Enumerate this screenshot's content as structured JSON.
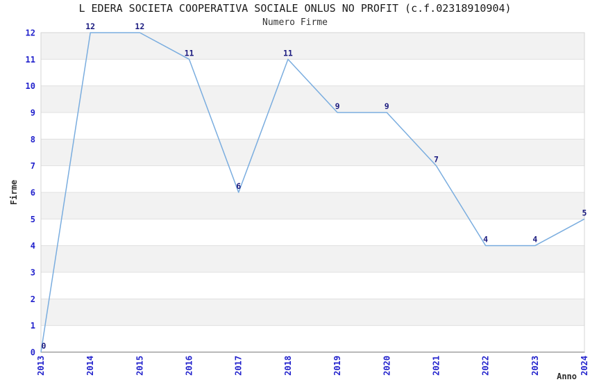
{
  "header": {
    "title": "L EDERA SOCIETA COOPERATIVA SOCIALE ONLUS NO PROFIT (c.f.02318910904)",
    "subtitle": "Numero Firme"
  },
  "chart_data": {
    "type": "line",
    "title": "Numero Firme",
    "x": [
      2013,
      2014,
      2015,
      2016,
      2017,
      2018,
      2019,
      2020,
      2021,
      2022,
      2023,
      2024
    ],
    "series": [
      {
        "name": "Numero Firme",
        "values": [
          0,
          12,
          12,
          11,
          6,
          11,
          9,
          9,
          7,
          4,
          4,
          5
        ]
      }
    ],
    "xlabel": "Anno",
    "ylabel": "Firme",
    "ylim": [
      0,
      12
    ],
    "yticks": [
      0,
      1,
      2,
      3,
      4,
      5,
      6,
      7,
      8,
      9,
      10,
      11,
      12
    ],
    "grid": true,
    "legend": "none",
    "data_labels_visible": true,
    "banding": "gray horizontal bands on ranges 1-2, 3-4, 5-6, 7-8, 9-10, 11-12",
    "colors": {
      "line": "#7aaddf",
      "tick_label": "#2222cc",
      "data_label": "#1c1c80",
      "band": "#f2f2f2",
      "gridline": "#e0e0e0",
      "border": "#d4d4d4",
      "axis": "#b9b9b9",
      "title": "#1a1a1a",
      "subtitle": "#333333",
      "axis_title": "#2e2e2e",
      "background": "#ffffff"
    }
  }
}
